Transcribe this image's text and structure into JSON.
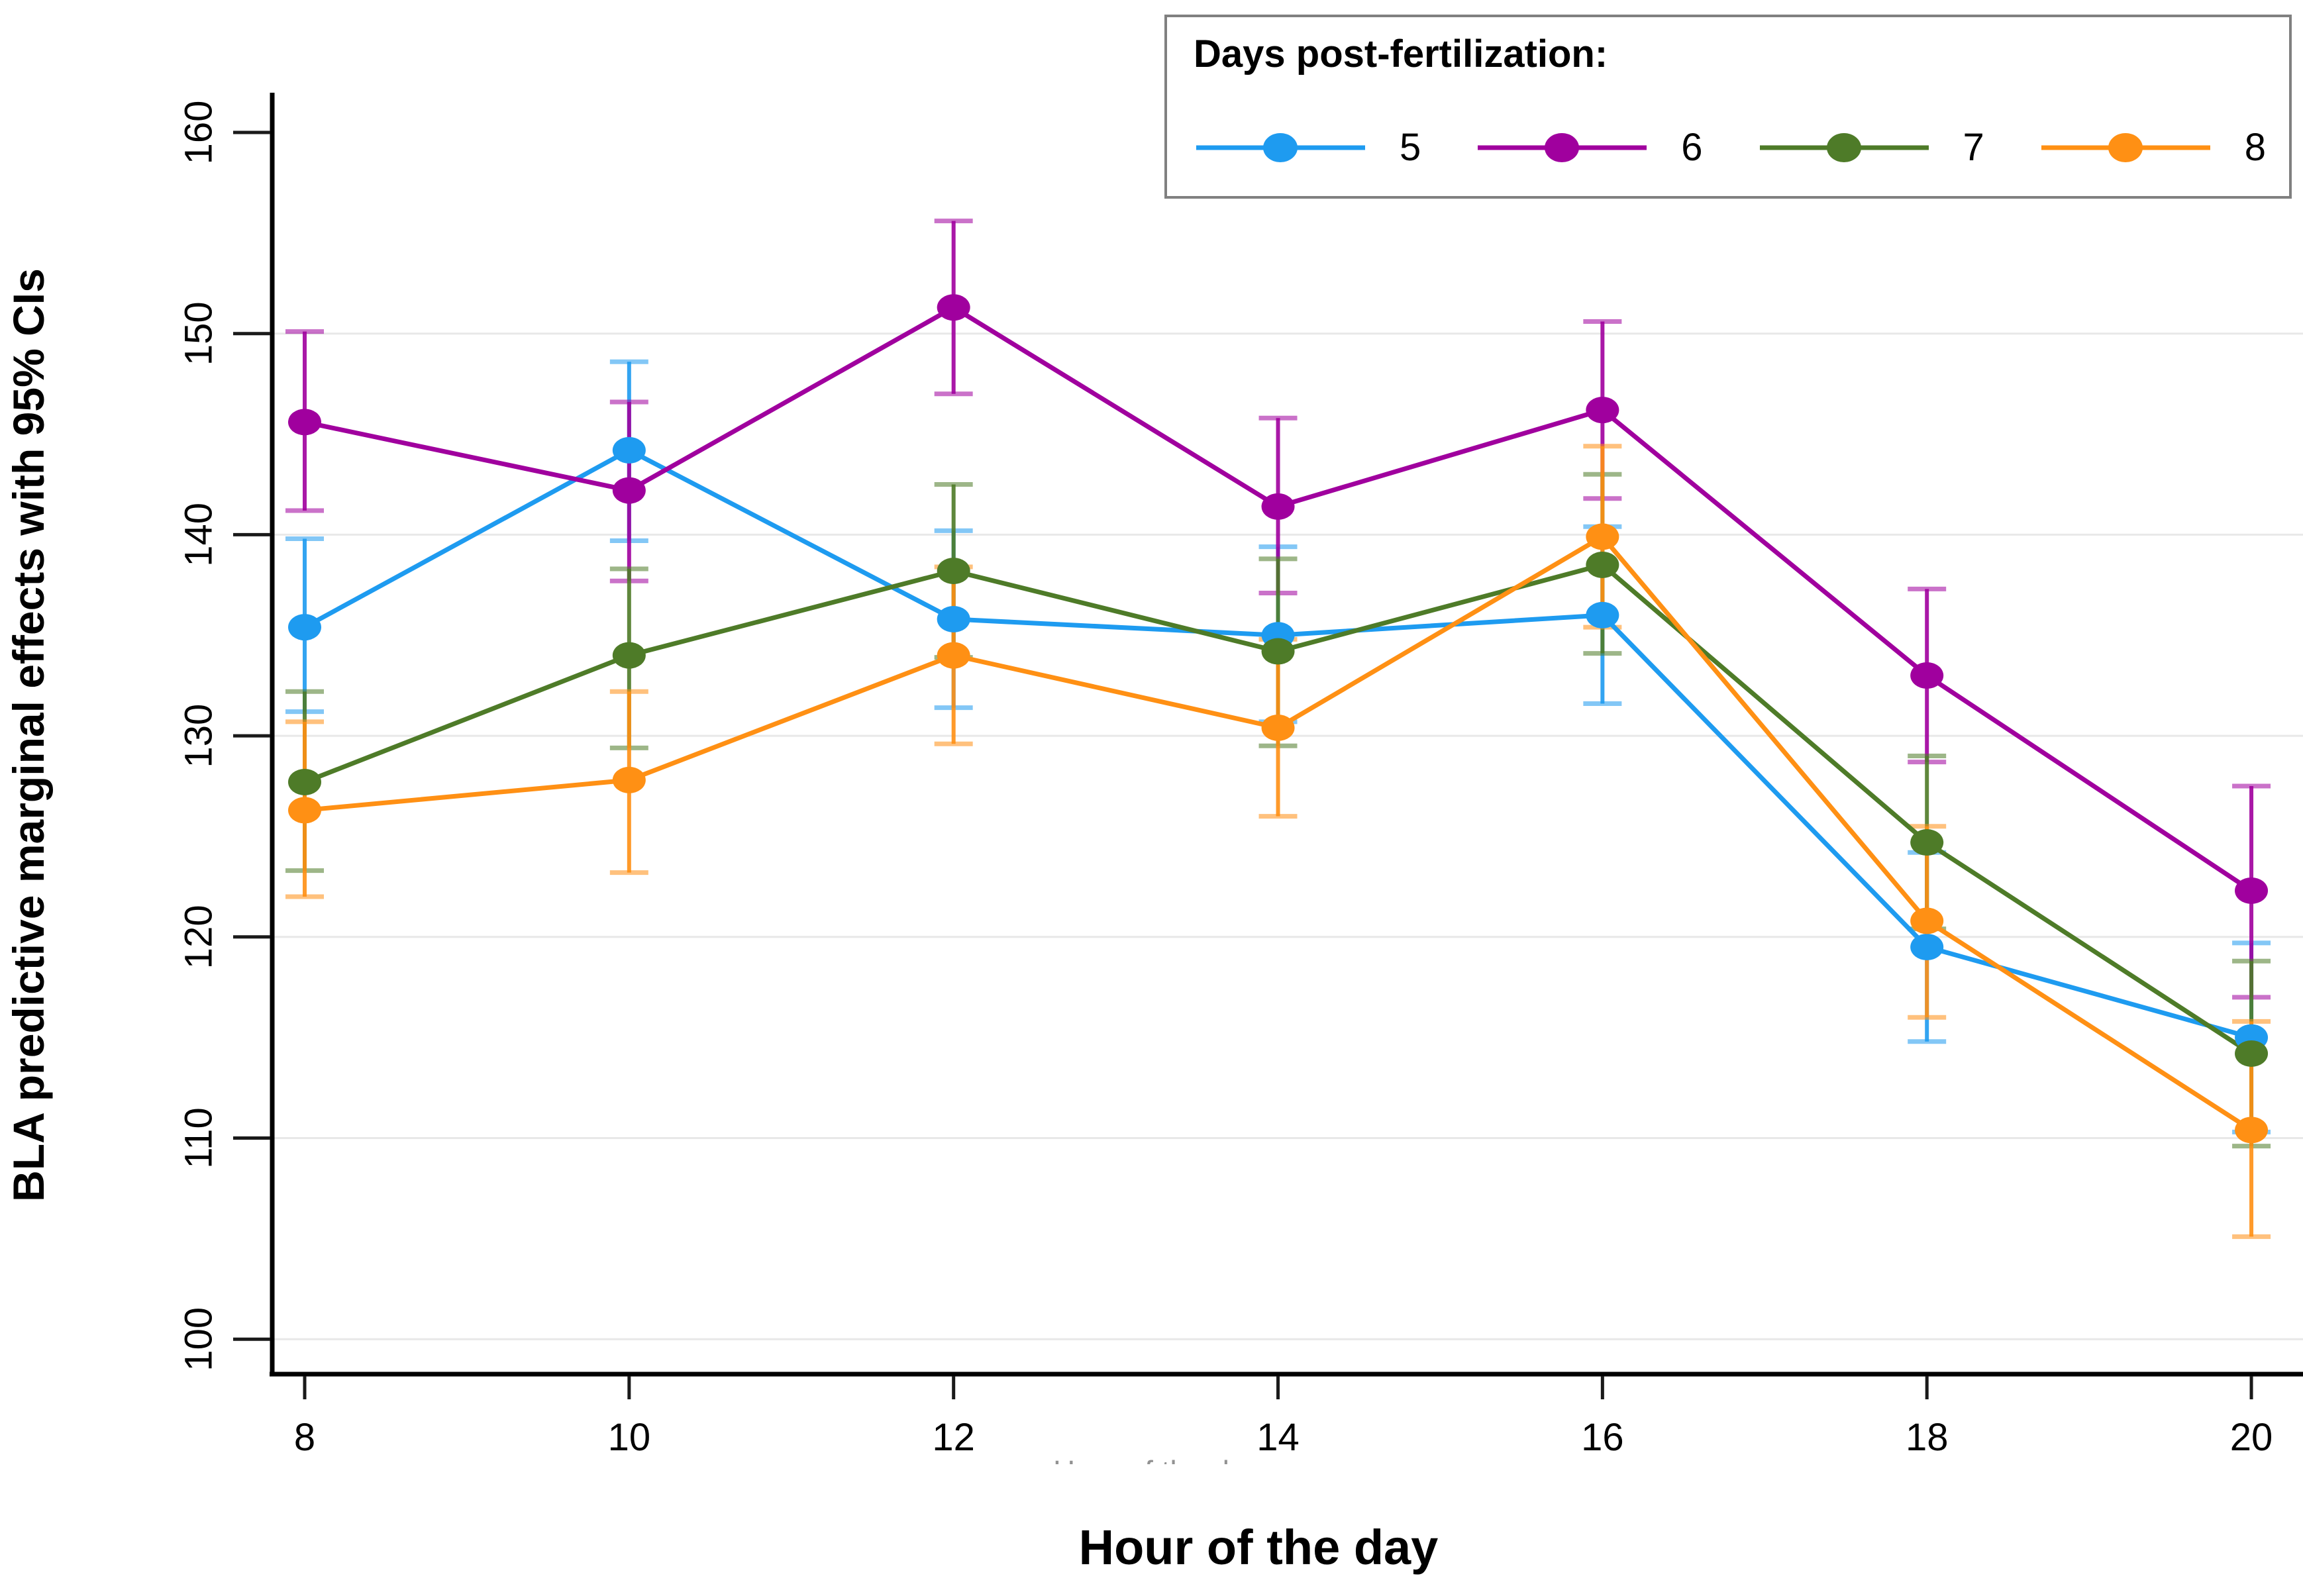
{
  "figure": {
    "background": "#ffffff",
    "axis_color": "#000000",
    "tick_color": "#1a1a1a",
    "grid_color": "#e8e8e8"
  },
  "chart_data": {
    "type": "line",
    "title": "",
    "xlabel": "Hour of the day",
    "xlabel_ghost": "Hour of the day",
    "ylabel": "BLA predictive marginal effects with 95% CIs",
    "x": [
      8,
      10,
      12,
      14,
      16,
      18,
      20
    ],
    "x_tick_labels": [
      "8",
      "10",
      "12",
      "14",
      "16",
      "18",
      "20"
    ],
    "y_ticks": [
      100,
      110,
      120,
      130,
      140,
      150,
      160
    ],
    "y_tick_labels": [
      "100",
      "110",
      "120",
      "130",
      "140",
      "150",
      "160"
    ],
    "grid_values": [
      100,
      110,
      120,
      130,
      140,
      150
    ],
    "ylim": [
      98.3,
      162
    ],
    "xlim": [
      7.8,
      20.3
    ],
    "grid": "horizontal-only",
    "legend_position": "top-right",
    "legend_title": "Days post-fertilization:",
    "series": [
      {
        "name": "5",
        "color": "#1E9BF0",
        "values": [
          135.4,
          144.2,
          135.8,
          135.0,
          136.0,
          119.5,
          115.0
        ],
        "ci_low": [
          131.2,
          139.7,
          131.4,
          130.7,
          131.6,
          114.8,
          110.3
        ],
        "ci_high": [
          139.8,
          148.6,
          140.2,
          139.4,
          140.4,
          124.2,
          119.7
        ]
      },
      {
        "name": "6",
        "color": "#A0009E",
        "values": [
          145.6,
          142.2,
          151.3,
          141.4,
          146.2,
          133.0,
          122.3
        ],
        "ci_low": [
          141.2,
          137.7,
          147.0,
          137.1,
          141.8,
          128.7,
          117.0
        ],
        "ci_high": [
          150.1,
          146.6,
          155.6,
          145.8,
          150.6,
          137.3,
          127.5
        ]
      },
      {
        "name": "7",
        "color": "#4E7B28",
        "values": [
          127.7,
          134.0,
          138.2,
          134.2,
          138.5,
          124.7,
          114.2
        ],
        "ci_low": [
          123.3,
          129.4,
          133.9,
          129.5,
          134.1,
          120.4,
          109.6
        ],
        "ci_high": [
          132.2,
          138.3,
          142.5,
          138.8,
          143.0,
          129.0,
          118.8
        ]
      },
      {
        "name": "8",
        "color": "#FF9014",
        "values": [
          126.3,
          127.8,
          134.0,
          130.4,
          139.9,
          120.8,
          110.4
        ],
        "ci_low": [
          122.0,
          123.2,
          129.6,
          126.0,
          135.4,
          116.0,
          105.1
        ],
        "ci_high": [
          130.7,
          132.2,
          138.4,
          134.8,
          144.4,
          125.5,
          115.8
        ]
      }
    ]
  }
}
